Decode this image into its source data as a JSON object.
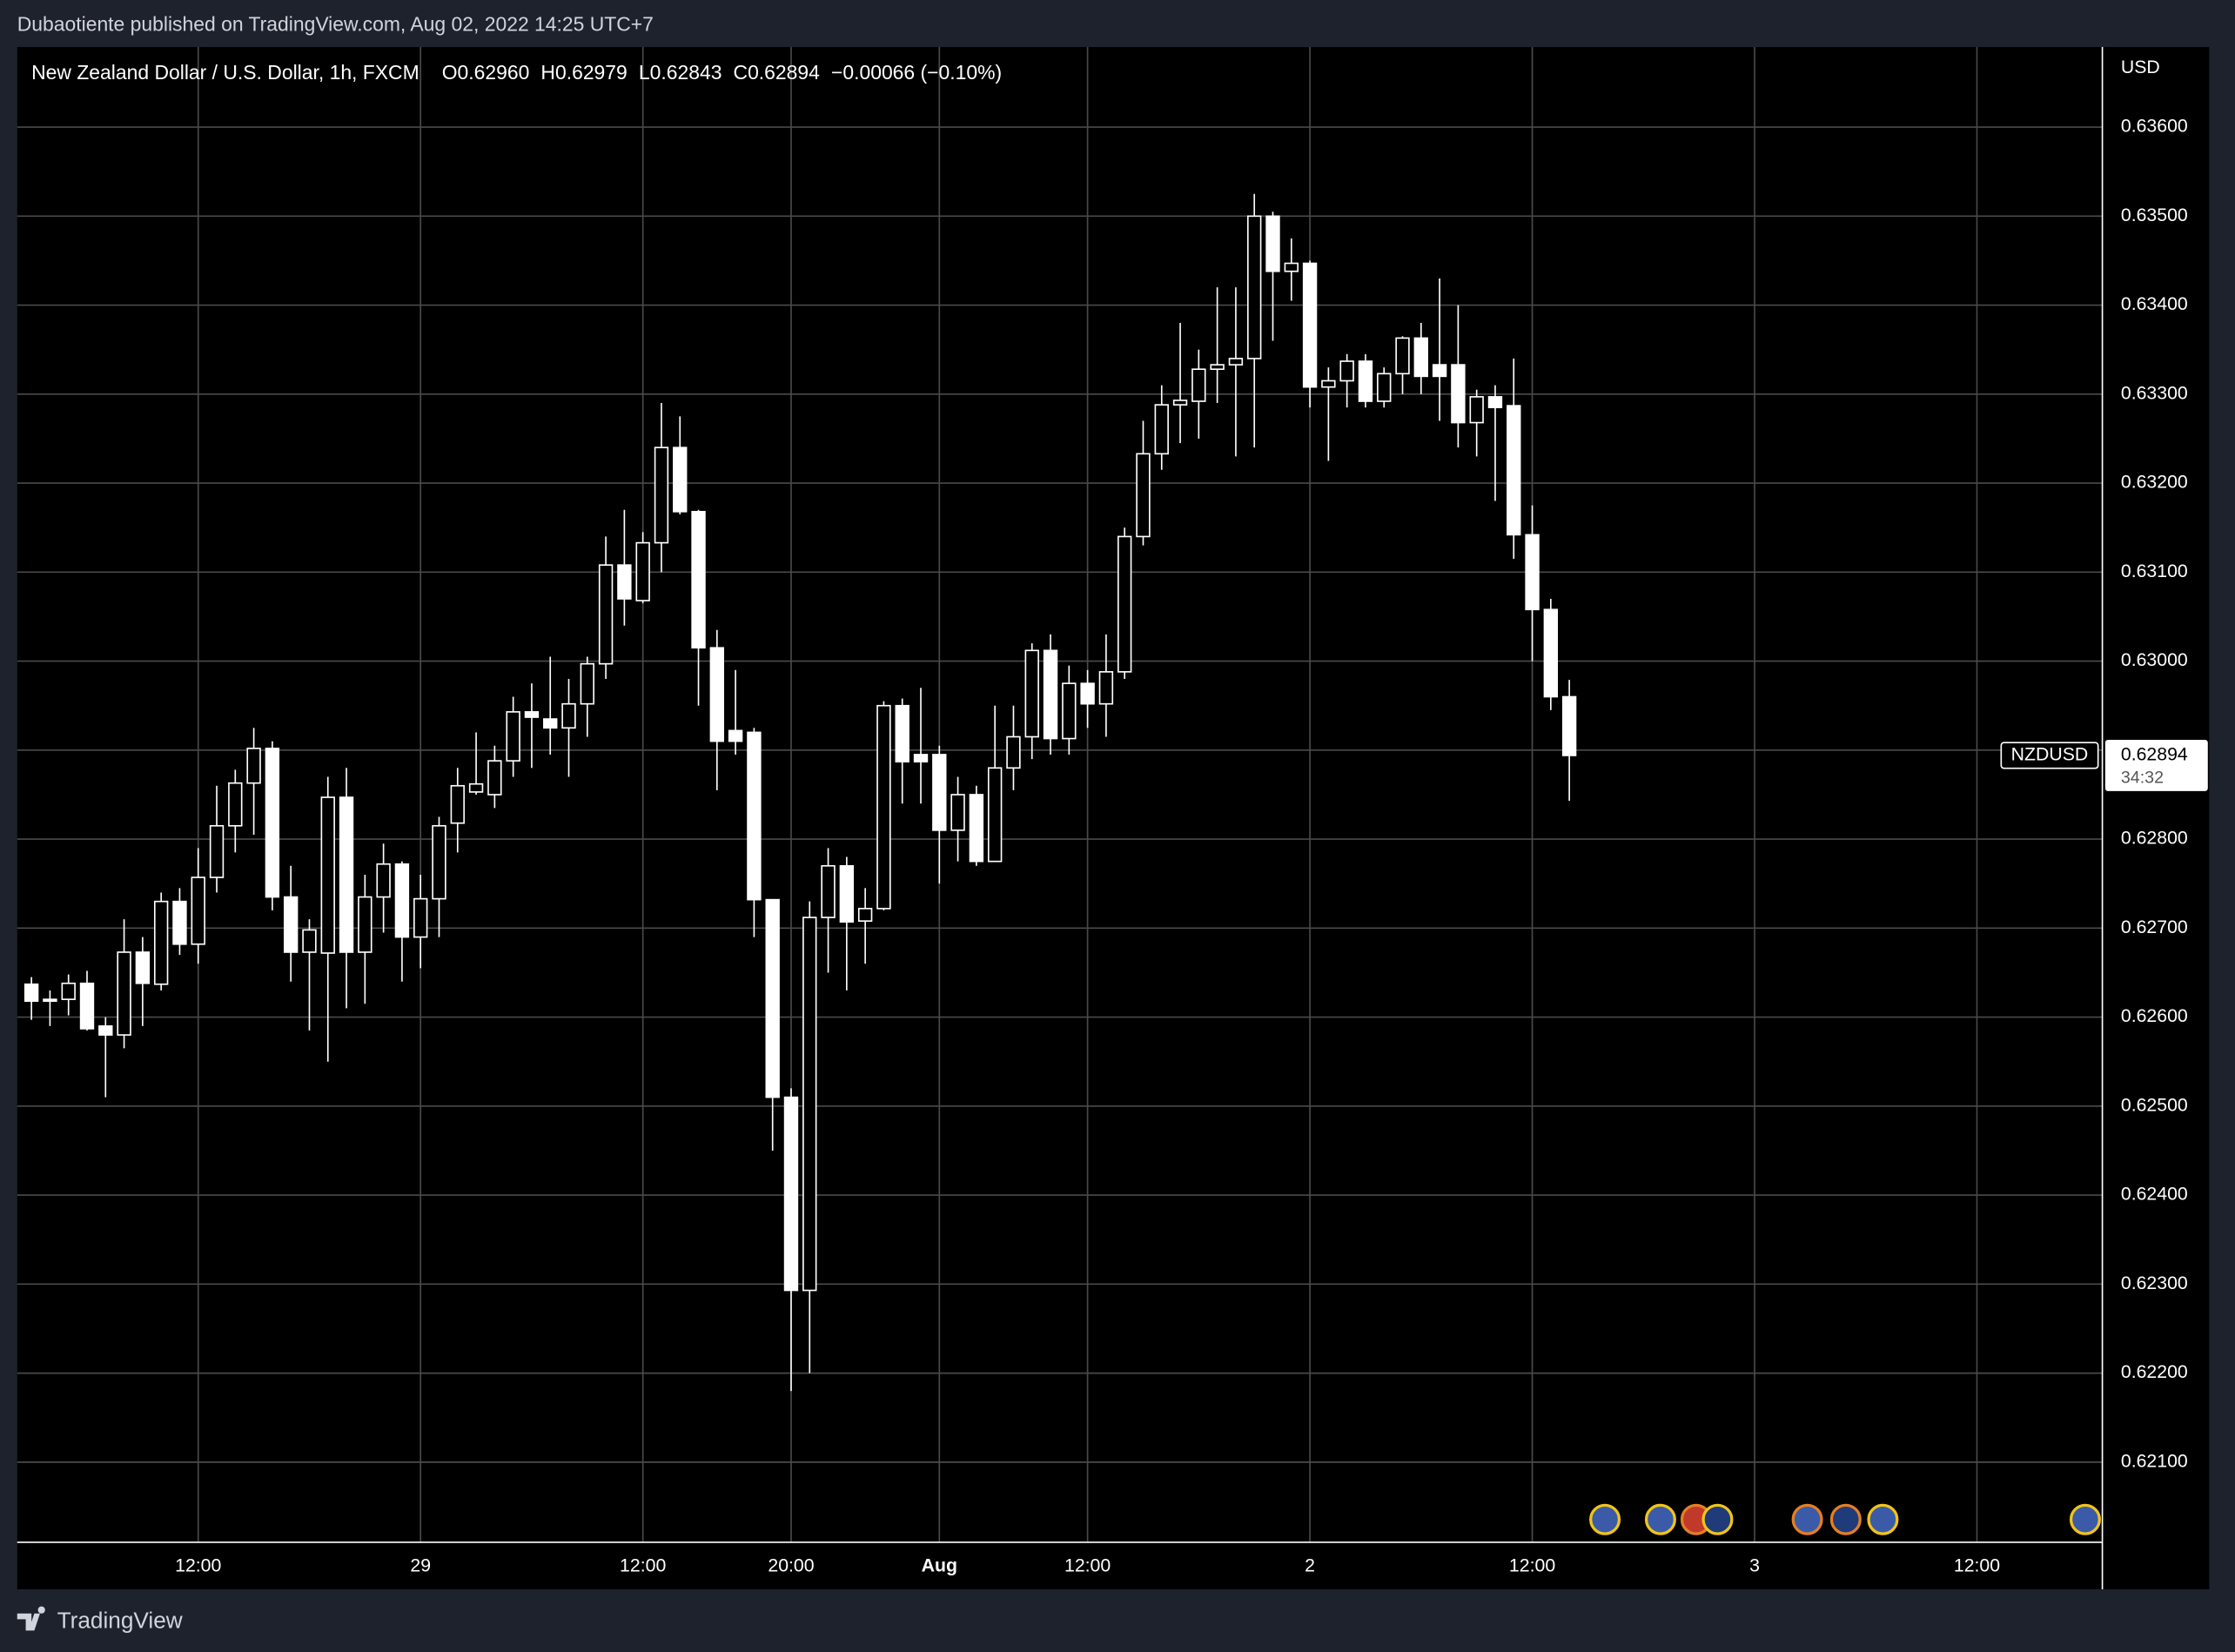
{
  "header": {
    "publisher": "Dubaotiente published on TradingView.com, Aug 02, 2022 14:25 UTC+7",
    "footer": "TradingView"
  },
  "chart_data": {
    "type": "candlestick",
    "title": "New Zealand Dollar / U.S. Dollar, 1h, FXCM",
    "ohlc_text": [
      "O0.62960",
      "H0.62979",
      "L0.62843",
      "C0.62894",
      "−0.00066 (−0.10%)"
    ],
    "y_axis_label": "USD",
    "symbol": "NZDUSD",
    "last_price": 0.62894,
    "countdown": "34:32",
    "up_color": "#000000",
    "down_color": "#ffffff",
    "wick_color": "#ffffff",
    "grid": true,
    "ylim": [
      0.6201,
      0.6369
    ],
    "yticks": [
      {
        "value": 0.621,
        "label": "0.62100"
      },
      {
        "value": 0.622,
        "label": "0.62200"
      },
      {
        "value": 0.623,
        "label": "0.62300"
      },
      {
        "value": 0.624,
        "label": "0.62400"
      },
      {
        "value": 0.625,
        "label": "0.62500"
      },
      {
        "value": 0.626,
        "label": "0.62600"
      },
      {
        "value": 0.627,
        "label": "0.62700"
      },
      {
        "value": 0.628,
        "label": "0.62800"
      },
      {
        "value": 0.629,
        "label": "0.62900"
      },
      {
        "value": 0.63,
        "label": "0.63000"
      },
      {
        "value": 0.631,
        "label": "0.63100"
      },
      {
        "value": 0.632,
        "label": "0.63200"
      },
      {
        "value": 0.633,
        "label": "0.63300"
      },
      {
        "value": 0.634,
        "label": "0.63400"
      },
      {
        "value": 0.635,
        "label": "0.63500"
      },
      {
        "value": 0.636,
        "label": "0.63600"
      }
    ],
    "categories": [
      null,
      null,
      null,
      null,
      null,
      null,
      null,
      null,
      null,
      "12:00",
      null,
      null,
      null,
      null,
      null,
      null,
      null,
      null,
      null,
      null,
      null,
      "29",
      null,
      null,
      null,
      null,
      null,
      null,
      null,
      null,
      null,
      null,
      null,
      "12:00",
      null,
      null,
      null,
      null,
      null,
      null,
      null,
      "20:00",
      null,
      null,
      null,
      null,
      null,
      null,
      null,
      "Aug",
      null,
      null,
      null,
      null,
      null,
      null,
      null,
      "12:00",
      null,
      null,
      null,
      null,
      null,
      null,
      null,
      null,
      null,
      null,
      null,
      "2",
      null,
      null,
      null,
      null,
      null,
      null,
      null,
      null,
      null,
      null,
      null,
      "12:00",
      null,
      null,
      null,
      null,
      null,
      null,
      null,
      null,
      null,
      null,
      null,
      "3",
      null,
      null,
      null,
      null,
      null,
      null,
      null,
      null,
      null,
      null,
      null,
      "12:00",
      null,
      null,
      null,
      null,
      null,
      null
    ],
    "open": [
      0.62637,
      0.6262,
      0.6262,
      0.62638,
      0.6259,
      0.6258,
      0.62673,
      0.62637,
      0.6273,
      0.62682,
      0.62757,
      0.62815,
      0.62863,
      0.62902,
      0.62735,
      0.62673,
      0.62672,
      0.62847,
      0.62673,
      0.62735,
      0.62772,
      0.6269,
      0.62733,
      0.62818,
      0.62853,
      0.6285,
      0.62888,
      0.62943,
      0.62935,
      0.62925,
      0.62952,
      0.62997,
      0.63108,
      0.63068,
      0.63133,
      0.6324,
      0.63168,
      0.63015,
      0.62922,
      0.6292,
      0.62732,
      0.6251,
      0.62293,
      0.62712,
      0.6277,
      0.62708,
      0.62722,
      0.6295,
      0.62895,
      0.62895,
      0.6281,
      0.6285,
      0.62775,
      0.6288,
      0.62915,
      0.63012,
      0.62913,
      0.62975,
      0.62952,
      0.62988,
      0.6314,
      0.63233,
      0.63288,
      0.63292,
      0.63328,
      0.63333,
      0.6334,
      0.635,
      0.63438,
      0.63447,
      0.63308,
      0.63315,
      0.63337,
      0.63292,
      0.63323,
      0.63363,
      0.63333,
      0.63333,
      0.63268,
      0.63297,
      0.63287,
      0.63142,
      0.63058,
      0.6296,
      null,
      null,
      null,
      null,
      null,
      null,
      null,
      null,
      null,
      null,
      null,
      null,
      null,
      null,
      null,
      null,
      null,
      null,
      null,
      null,
      null,
      null,
      null,
      null,
      null,
      null,
      null,
      null
    ],
    "high": [
      0.62645,
      0.6263,
      0.62648,
      0.62652,
      0.626,
      0.6271,
      0.6269,
      0.6274,
      0.62745,
      0.6279,
      0.6286,
      0.62878,
      0.62925,
      0.6291,
      0.6277,
      0.6271,
      0.6287,
      0.6288,
      0.6276,
      0.62795,
      0.62775,
      0.6276,
      0.62825,
      0.6288,
      0.6292,
      0.62905,
      0.6296,
      0.62975,
      0.63005,
      0.6298,
      0.63005,
      0.6314,
      0.6317,
      0.63145,
      0.6329,
      0.63275,
      0.6317,
      0.63035,
      0.6299,
      0.62925,
      0.62732,
      0.6252,
      0.6273,
      0.6279,
      0.6278,
      0.62745,
      0.62955,
      0.62958,
      0.6297,
      0.62905,
      0.6287,
      0.6286,
      0.6295,
      0.6295,
      0.6302,
      0.6303,
      0.62995,
      0.6299,
      0.6303,
      0.6315,
      0.6327,
      0.6331,
      0.6338,
      0.6335,
      0.6342,
      0.6342,
      0.63525,
      0.63505,
      0.63475,
      0.6345,
      0.6333,
      0.63345,
      0.63345,
      0.6333,
      0.63365,
      0.6338,
      0.6343,
      0.634,
      0.63305,
      0.6331,
      0.6334,
      0.63175,
      0.6307,
      0.62979,
      null,
      null,
      null,
      null,
      null,
      null,
      null,
      null,
      null,
      null,
      null,
      null,
      null,
      null,
      null,
      null,
      null,
      null,
      null,
      null,
      null,
      null,
      null,
      null,
      null,
      null,
      null,
      null
    ],
    "low": [
      0.62597,
      0.6259,
      0.62602,
      0.62585,
      0.6251,
      0.62565,
      0.6259,
      0.6263,
      0.6267,
      0.6266,
      0.6274,
      0.62785,
      0.62805,
      0.6272,
      0.6264,
      0.62585,
      0.6255,
      0.6261,
      0.62615,
      0.62695,
      0.6264,
      0.62655,
      0.6269,
      0.62785,
      0.6285,
      0.62835,
      0.6287,
      0.6288,
      0.62895,
      0.6287,
      0.62915,
      0.6298,
      0.6304,
      0.63065,
      0.631,
      0.63165,
      0.6295,
      0.62855,
      0.62895,
      0.6269,
      0.6245,
      0.6218,
      0.622,
      0.6265,
      0.6263,
      0.6266,
      0.6272,
      0.6284,
      0.6284,
      0.6275,
      0.62775,
      0.6277,
      0.62775,
      0.62855,
      0.6289,
      0.62895,
      0.62895,
      0.62925,
      0.62915,
      0.6298,
      0.6313,
      0.63215,
      0.63245,
      0.6325,
      0.6329,
      0.6323,
      0.6324,
      0.6336,
      0.63405,
      0.63285,
      0.63225,
      0.63285,
      0.63285,
      0.63285,
      0.633,
      0.633,
      0.6327,
      0.6324,
      0.6323,
      0.6318,
      0.63115,
      0.63,
      0.62945,
      0.62843,
      null,
      null,
      null,
      null,
      null,
      null,
      null,
      null,
      null,
      null,
      null,
      null,
      null,
      null,
      null,
      null,
      null,
      null,
      null,
      null,
      null,
      null,
      null,
      null,
      null,
      null,
      null,
      null
    ],
    "close": [
      0.62618,
      0.62618,
      0.62638,
      0.62587,
      0.6258,
      0.62673,
      0.62638,
      0.6273,
      0.62682,
      0.62757,
      0.62815,
      0.62863,
      0.62902,
      0.62735,
      0.62673,
      0.62698,
      0.62847,
      0.62673,
      0.62735,
      0.62772,
      0.6269,
      0.62733,
      0.62815,
      0.6286,
      0.62862,
      0.62888,
      0.62943,
      0.62937,
      0.62925,
      0.62952,
      0.62997,
      0.63108,
      0.6307,
      0.63133,
      0.6324,
      0.63168,
      0.63015,
      0.6291,
      0.6291,
      0.62732,
      0.6251,
      0.62293,
      0.62712,
      0.6277,
      0.62707,
      0.62722,
      0.6295,
      0.62887,
      0.62887,
      0.6281,
      0.6285,
      0.62775,
      0.6288,
      0.62915,
      0.63012,
      0.62913,
      0.62975,
      0.62952,
      0.62988,
      0.6314,
      0.63233,
      0.63288,
      0.63293,
      0.63328,
      0.63333,
      0.6334,
      0.635,
      0.63438,
      0.63447,
      0.63308,
      0.63315,
      0.63337,
      0.63292,
      0.63323,
      0.63363,
      0.6332,
      0.6332,
      0.63268,
      0.63297,
      0.63285,
      0.63142,
      0.63058,
      0.6296,
      0.62894,
      null,
      null,
      null,
      null,
      null,
      null,
      null,
      null,
      null,
      null,
      null,
      null,
      null,
      null,
      null,
      null,
      null,
      null,
      null,
      null,
      null,
      null,
      null,
      null,
      null,
      null,
      null,
      null
    ]
  }
}
